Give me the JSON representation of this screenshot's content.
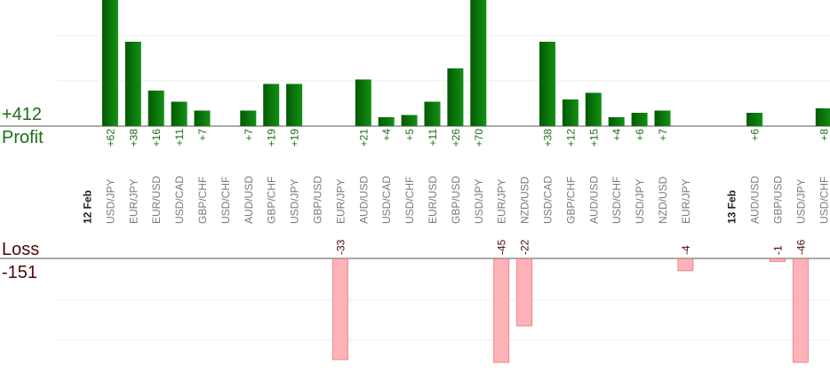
{
  "summary": {
    "profit_total": "+412",
    "profit_label": "Profit",
    "loss_label": "Loss",
    "loss_total": "-151"
  },
  "colors": {
    "profit_dark": "#035a03",
    "profit_light": "#139013",
    "loss_fill": "#ffb3b8",
    "loss_stroke": "#e8868c",
    "profit_text": "#1a6e14",
    "loss_text": "#4a0a0a",
    "grid": "#ececec",
    "axis": "#555555"
  },
  "chart_data": {
    "type": "bar",
    "grid": true,
    "categories": [
      {
        "label": "12 Feb",
        "date_marker": true
      },
      {
        "label": "USD/JPY",
        "profit": 62
      },
      {
        "label": "EUR/JPY",
        "profit": 38
      },
      {
        "label": "EUR/USD",
        "profit": 16
      },
      {
        "label": "USD/CAD",
        "profit": 11
      },
      {
        "label": "GBP/CHF",
        "profit": 7
      },
      {
        "label": "USD/CHF"
      },
      {
        "label": "AUD/USD",
        "profit": 7
      },
      {
        "label": "GBP/CHF",
        "profit": 19
      },
      {
        "label": "USD/JPY",
        "profit": 19
      },
      {
        "label": "GBP/USD"
      },
      {
        "label": "EUR/JPY",
        "loss": -33
      },
      {
        "label": "AUD/USD",
        "profit": 21
      },
      {
        "label": "USD/CAD",
        "profit": 4
      },
      {
        "label": "USD/CHF",
        "profit": 5
      },
      {
        "label": "EUR/USD",
        "profit": 11
      },
      {
        "label": "GBP/USD",
        "profit": 26
      },
      {
        "label": "USD/JPY",
        "profit": 70
      },
      {
        "label": "EUR/JPY",
        "loss": -45
      },
      {
        "label": "NZD/USD",
        "loss": -22
      },
      {
        "label": "USD/CAD",
        "profit": 38
      },
      {
        "label": "GBP/CHF",
        "profit": 12
      },
      {
        "label": "AUD/USD",
        "profit": 15
      },
      {
        "label": "USD/CHF",
        "profit": 4
      },
      {
        "label": "USD/JPY",
        "profit": 6
      },
      {
        "label": "NZD/USD",
        "profit": 7
      },
      {
        "label": "EUR/JPY",
        "loss": -4
      },
      {
        "label": ""
      },
      {
        "label": "13 Feb",
        "date_marker": true
      },
      {
        "label": "AUD/USD",
        "profit": 6
      },
      {
        "label": "GBP/USD",
        "loss": -1
      },
      {
        "label": "USD/JPY",
        "loss": -46
      },
      {
        "label": "USD/CHF",
        "profit": 8
      }
    ]
  }
}
